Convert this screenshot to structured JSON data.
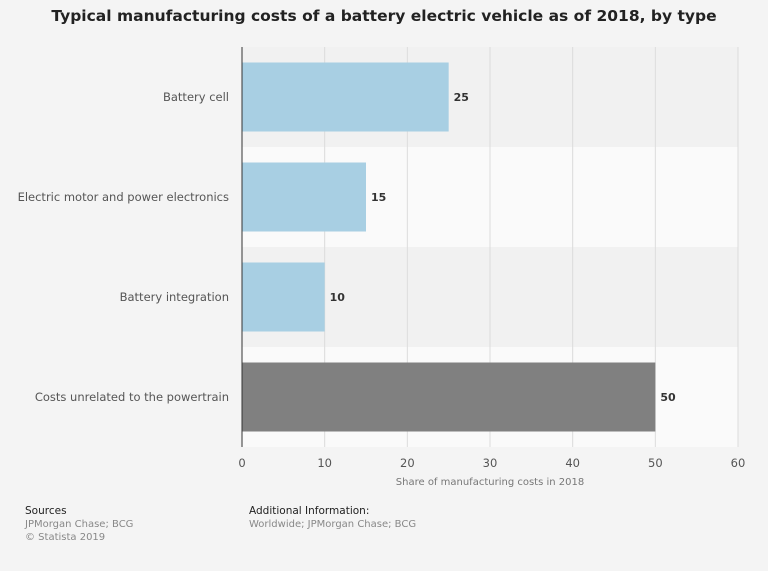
{
  "chart_data": {
    "type": "bar",
    "orientation": "horizontal",
    "title": "Typical manufacturing costs of a battery electric vehicle as of 2018, by type",
    "categories": [
      "Battery cell",
      "Electric motor and power electronics",
      "Battery integration",
      "Costs unrelated to the powertrain"
    ],
    "values": [
      25,
      15,
      10,
      50
    ],
    "bar_colors": [
      "#a8cfe3",
      "#a8cfe3",
      "#a8cfe3",
      "#808080"
    ],
    "xlabel": "Share of manufacturing costs in 2018",
    "ylabel": "",
    "xlim": [
      0,
      60
    ],
    "xticks": [
      0,
      10,
      20,
      30,
      40,
      50,
      60
    ],
    "grid": true,
    "data_labels": true
  },
  "footer": {
    "sources_heading": "Sources",
    "sources_lines": [
      "JPMorgan Chase; BCG",
      "© Statista 2019"
    ],
    "additional_heading": "Additional Information:",
    "additional_lines": [
      "Worldwide; JPMorgan Chase; BCG"
    ]
  }
}
